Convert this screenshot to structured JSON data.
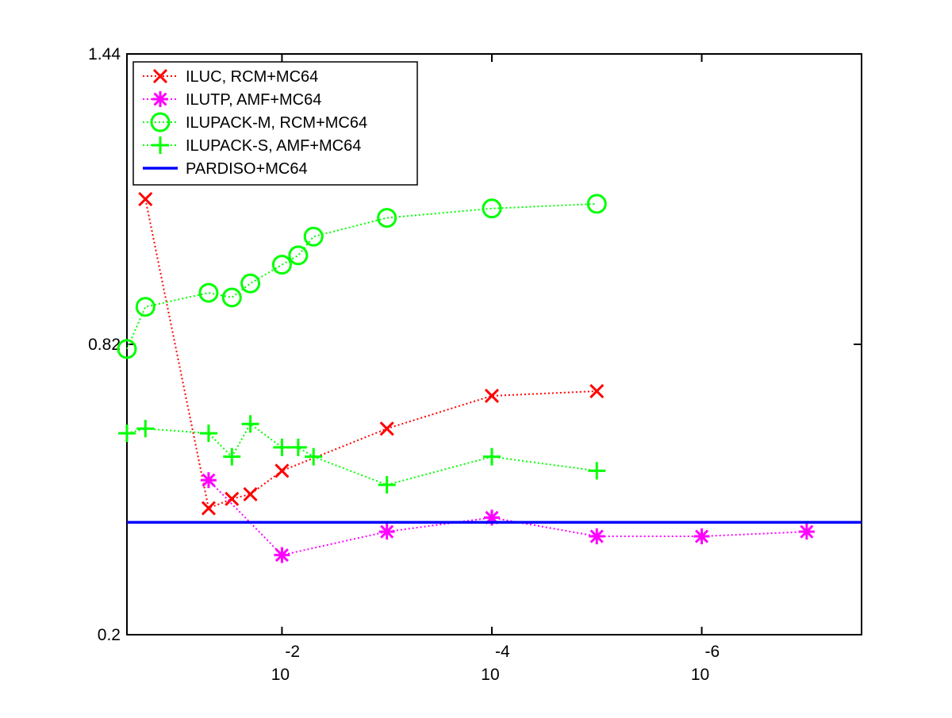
{
  "chart_data": {
    "type": "line",
    "title": "",
    "xlabel": "",
    "ylabel": "",
    "x_scale": "log10 (decreasing to the right)",
    "x_lim": [
      0.3,
      3e-08
    ],
    "y_lim": [
      0.2,
      1.44
    ],
    "y_ticks": [
      {
        "value": 0.2,
        "label": "0.2"
      },
      {
        "value": 0.82,
        "label": "0.82"
      },
      {
        "value": 1.44,
        "label": "1.44"
      }
    ],
    "x_ticks": [
      {
        "value": 0.01,
        "base": "10",
        "exponent": "-2"
      },
      {
        "value": 0.0001,
        "base": "10",
        "exponent": "-4"
      },
      {
        "value": 1e-06,
        "base": "10",
        "exponent": "-6"
      }
    ],
    "grid": false,
    "legend_position": "top-left",
    "series": [
      {
        "name": "ILUC, RCM+MC64",
        "color": "#ff0000",
        "marker": "x",
        "line_style": "dotted",
        "x": [
          0.2,
          0.05,
          0.03,
          0.02,
          0.01,
          0.001,
          0.0001,
          1e-05
        ],
        "y": [
          1.13,
          0.47,
          0.49,
          0.5,
          0.55,
          0.64,
          0.71,
          0.72
        ]
      },
      {
        "name": "ILUTP, AMF+MC64",
        "color": "#ff00ff",
        "marker": "asterisk",
        "line_style": "dotted",
        "x": [
          0.05,
          0.01,
          0.001,
          0.0001,
          1e-05,
          1e-06,
          1e-07
        ],
        "y": [
          0.53,
          0.37,
          0.42,
          0.45,
          0.41,
          0.41,
          0.42
        ]
      },
      {
        "name": "ILUPACK-M, RCM+MC64",
        "color": "#00ff00",
        "marker": "o",
        "line_style": "dotted",
        "x": [
          0.3,
          0.2,
          0.05,
          0.03,
          0.02,
          0.01,
          0.007,
          0.005,
          0.001,
          0.0001,
          1e-05
        ],
        "y": [
          0.81,
          0.9,
          0.93,
          0.92,
          0.95,
          0.99,
          1.01,
          1.05,
          1.09,
          1.11,
          1.12
        ]
      },
      {
        "name": "ILUPACK-S, AMF+MC64",
        "color": "#00ff00",
        "marker": "+",
        "line_style": "dotted",
        "x": [
          0.3,
          0.2,
          0.05,
          0.03,
          0.02,
          0.01,
          0.007,
          0.005,
          0.001,
          0.0001,
          1e-05
        ],
        "y": [
          0.63,
          0.64,
          0.63,
          0.58,
          0.65,
          0.6,
          0.6,
          0.58,
          0.52,
          0.58,
          0.55
        ]
      },
      {
        "name": "PARDISO+MC64",
        "color": "#0000ff",
        "marker": "none",
        "line_style": "solid",
        "x": [
          0.3,
          3e-08
        ],
        "y": [
          0.44,
          0.44
        ]
      }
    ]
  }
}
